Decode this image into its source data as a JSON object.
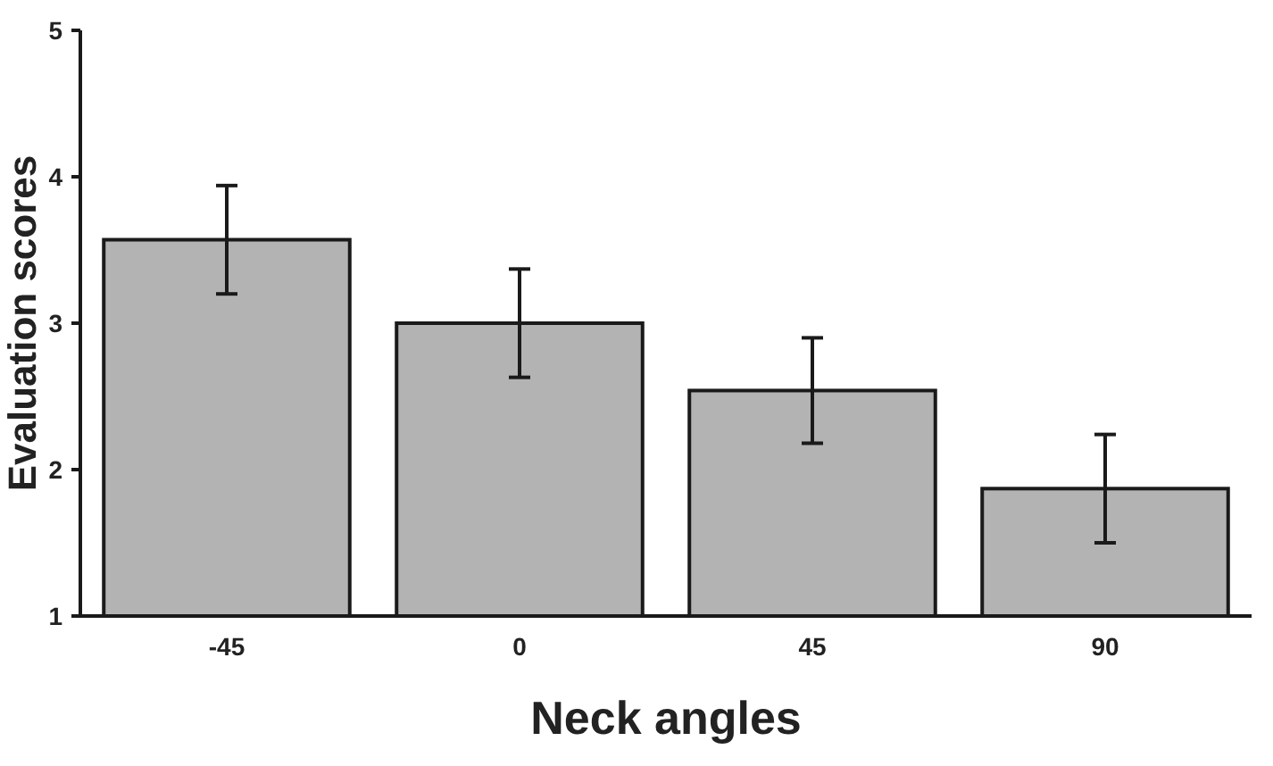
{
  "chart_data": {
    "type": "bar",
    "xlabel": "Neck angles",
    "ylabel": "Evaluation scores",
    "categories": [
      "-45",
      "0",
      "45",
      "90"
    ],
    "values": [
      3.57,
      3.0,
      2.54,
      1.87
    ],
    "errors": [
      0.37,
      0.37,
      0.36,
      0.37
    ],
    "color": "#b3b3b3",
    "ylim": [
      1,
      5
    ],
    "yticks": [
      1,
      2,
      3,
      4,
      5
    ],
    "grid": false
  }
}
